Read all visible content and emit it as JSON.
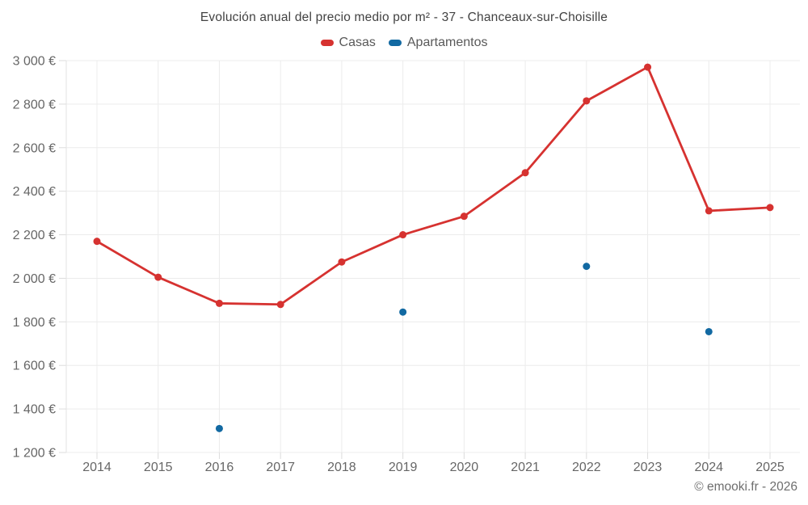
{
  "page": {
    "footer": "© emooki.fr - 2026"
  },
  "chart_data": {
    "type": "line",
    "title": "Evolución anual del precio medio por m² - 37 - Chanceaux-sur-Choisille",
    "categories": [
      "2014",
      "2015",
      "2016",
      "2017",
      "2018",
      "2019",
      "2020",
      "2021",
      "2022",
      "2023",
      "2024",
      "2025"
    ],
    "series": [
      {
        "name": "Casas",
        "style": "line",
        "color": "#d63230",
        "values": [
          2170,
          2005,
          1885,
          1880,
          2075,
          2200,
          2285,
          2485,
          2815,
          2970,
          2310,
          2325
        ]
      },
      {
        "name": "Apartamentos",
        "style": "scatter",
        "color": "#1269a2",
        "values": [
          null,
          null,
          1310,
          null,
          null,
          1845,
          null,
          null,
          2055,
          null,
          1755,
          null
        ]
      }
    ],
    "xlabel": "",
    "ylabel": "",
    "y_axis": {
      "min": 1200,
      "max": 3000,
      "tick_step": 200,
      "tick_values": [
        3000,
        2800,
        2600,
        2400,
        2200,
        2000,
        1800,
        1600,
        1400,
        1200
      ],
      "tick_labels": [
        "3 000 €",
        "2 800 €",
        "2 600 €",
        "2 400 €",
        "2 200 €",
        "2 000 €",
        "1 800 €",
        "1 600 €",
        "1 400 €",
        "1 200 €"
      ]
    },
    "grid": true,
    "legend_position": "top",
    "currency_suffix": "€"
  },
  "colors": {
    "grid_line": "#ececec",
    "axis_tick": "#dcdcdc",
    "axis_line": "#e3e3e3",
    "tick_label": "#666666"
  }
}
